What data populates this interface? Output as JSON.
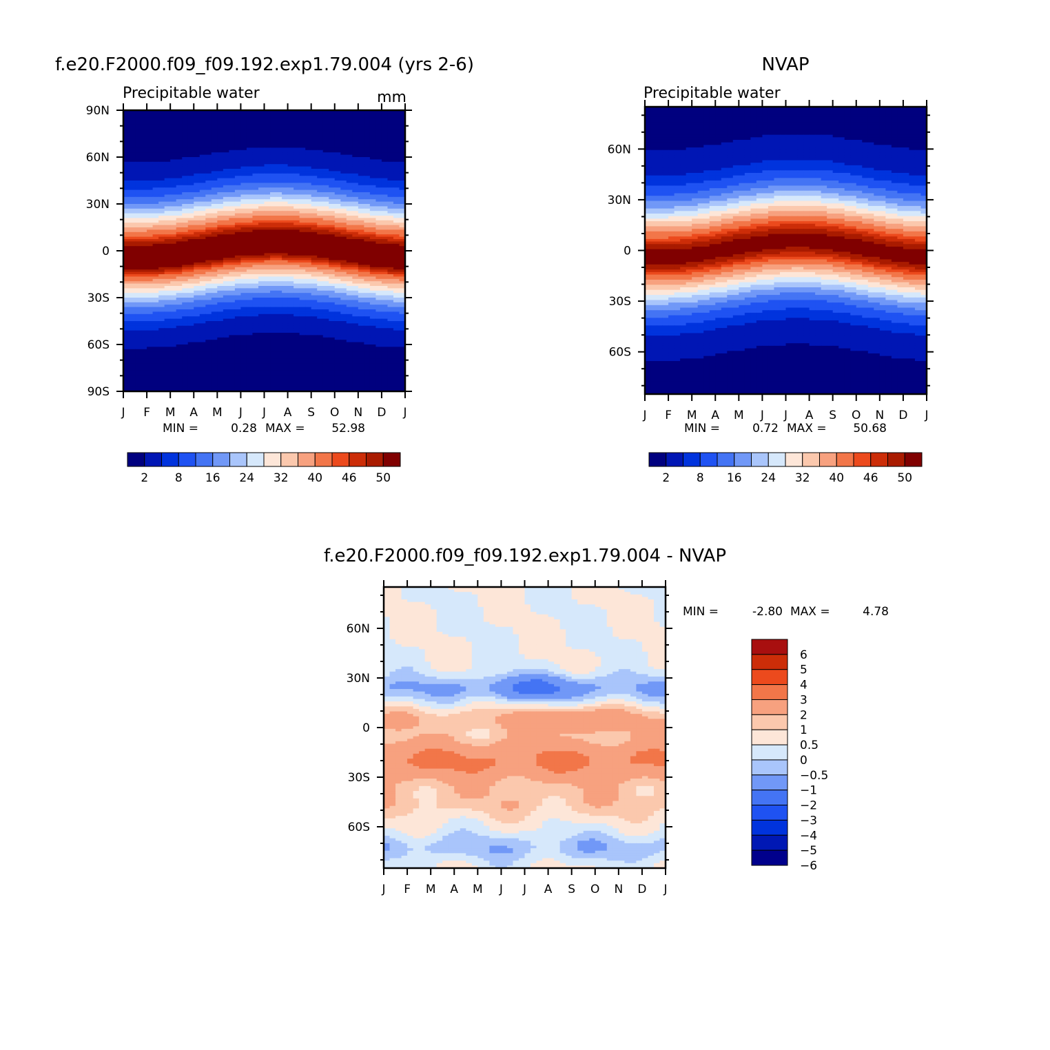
{
  "month_labels": [
    "J",
    "F",
    "M",
    "A",
    "M",
    "J",
    "J",
    "A",
    "S",
    "O",
    "N",
    "D",
    "J"
  ],
  "colors": {
    "pw_palette": [
      "#00007f",
      "#0016b4",
      "#0033dd",
      "#1f52f2",
      "#4474f4",
      "#7198f7",
      "#a9c5fb",
      "#d6e8fb",
      "#fde6d8",
      "#fbc8ad",
      "#f7a17f",
      "#f27649",
      "#ec4a1d",
      "#cc2d08",
      "#a91b00",
      "#800000"
    ],
    "diff_palette": [
      "#00008c",
      "#0018b4",
      "#0033dd",
      "#1f52f2",
      "#4474f4",
      "#7198f7",
      "#a9c5fb",
      "#d6e8fb",
      "#fde6d8",
      "#fbc8ad",
      "#f7a17f",
      "#f27649",
      "#ec4a1d",
      "#cc2d08",
      "#a80f0f"
    ]
  },
  "panels": {
    "model": {
      "title": "f.e20.F2000.f09_f09.192.exp1.79.004 (yrs 2-6)",
      "subtitle_left": "Precipitable water",
      "subtitle_right": "mm",
      "min_max": {
        "min_label": "MIN =",
        "min_value": "0.28",
        "max_label": "MAX =",
        "max_value": "52.98"
      },
      "y_ticks": [
        "90N",
        "60N",
        "30N",
        "0",
        "30S",
        "60S",
        "90S"
      ],
      "colorbar_labels": [
        "2",
        "8",
        "16",
        "24",
        "32",
        "40",
        "46",
        "50"
      ]
    },
    "nvap": {
      "title": "NVAP",
      "subtitle_left": "Precipitable water",
      "min_max": {
        "min_label": "MIN =",
        "min_value": "0.72",
        "max_label": "MAX =",
        "max_value": "50.68"
      },
      "y_ticks": [
        "60N",
        "30N",
        "0",
        "30S",
        "60S"
      ],
      "colorbar_labels": [
        "2",
        "8",
        "16",
        "24",
        "32",
        "40",
        "46",
        "50"
      ]
    },
    "difference": {
      "title": "f.e20.F2000.f09_f09.192.exp1.79.004 - NVAP",
      "min_max": {
        "min_label": "MIN =",
        "min_value": "-2.80",
        "max_label": "MAX =",
        "max_value": "4.78"
      },
      "y_ticks": [
        "60N",
        "30N",
        "0",
        "30S",
        "60S"
      ],
      "colorbar_labels": [
        "6",
        "5",
        "4",
        "3",
        "2",
        "1",
        "0.5",
        "0",
        "-0.5",
        "-1",
        "-2",
        "-3",
        "-4",
        "-5",
        "-6"
      ]
    }
  },
  "chart_data": [
    {
      "type": "heatmap",
      "title": "f.e20.F2000.f09_f09.192.exp1.79.004 (yrs 2-6)",
      "subtitle": "Precipitable water",
      "units": "mm",
      "x": [
        "J",
        "F",
        "M",
        "A",
        "M",
        "J",
        "J",
        "A",
        "S",
        "O",
        "N",
        "D",
        "J"
      ],
      "ylim": [
        -90,
        90
      ],
      "y_ticks": [
        "90N",
        "60N",
        "30N",
        "0",
        "30S",
        "60S",
        "90S"
      ],
      "levels": [
        2,
        5,
        8,
        12,
        16,
        20,
        24,
        28,
        32,
        36,
        40,
        44,
        46,
        48,
        50
      ],
      "min": 0.28,
      "max": 52.98,
      "field": "latitude-month zonal mean precipitable water; max about 52 near equator (3S Jan-Mar, 7N Jul-Sep), below 2 poleward of 75 deg in winter hemisphere"
    },
    {
      "type": "heatmap",
      "title": "NVAP",
      "subtitle": "Precipitable water",
      "x": [
        "J",
        "F",
        "M",
        "A",
        "M",
        "J",
        "J",
        "A",
        "S",
        "O",
        "N",
        "D",
        "J"
      ],
      "ylim": [
        -85,
        85
      ],
      "y_ticks": [
        "60N",
        "30N",
        "0",
        "30S",
        "60S"
      ],
      "levels": [
        2,
        5,
        8,
        12,
        16,
        20,
        24,
        28,
        32,
        36,
        40,
        44,
        46,
        48,
        50
      ],
      "min": 0.72,
      "max": 50.68
    },
    {
      "type": "heatmap",
      "title": "f.e20.F2000.f09_f09.192.exp1.79.004 - NVAP",
      "x": [
        "J",
        "F",
        "M",
        "A",
        "M",
        "J",
        "J",
        "A",
        "S",
        "O",
        "N",
        "D",
        "J"
      ],
      "ylim": [
        -85,
        85
      ],
      "y_ticks": [
        "60N",
        "30N",
        "0",
        "30S",
        "60S"
      ],
      "levels": [
        -6,
        -5,
        -4,
        -3,
        -2,
        -1,
        -0.5,
        0,
        0.5,
        1,
        2,
        3,
        4,
        5,
        6
      ],
      "min": -2.8,
      "max": 4.78
    }
  ]
}
